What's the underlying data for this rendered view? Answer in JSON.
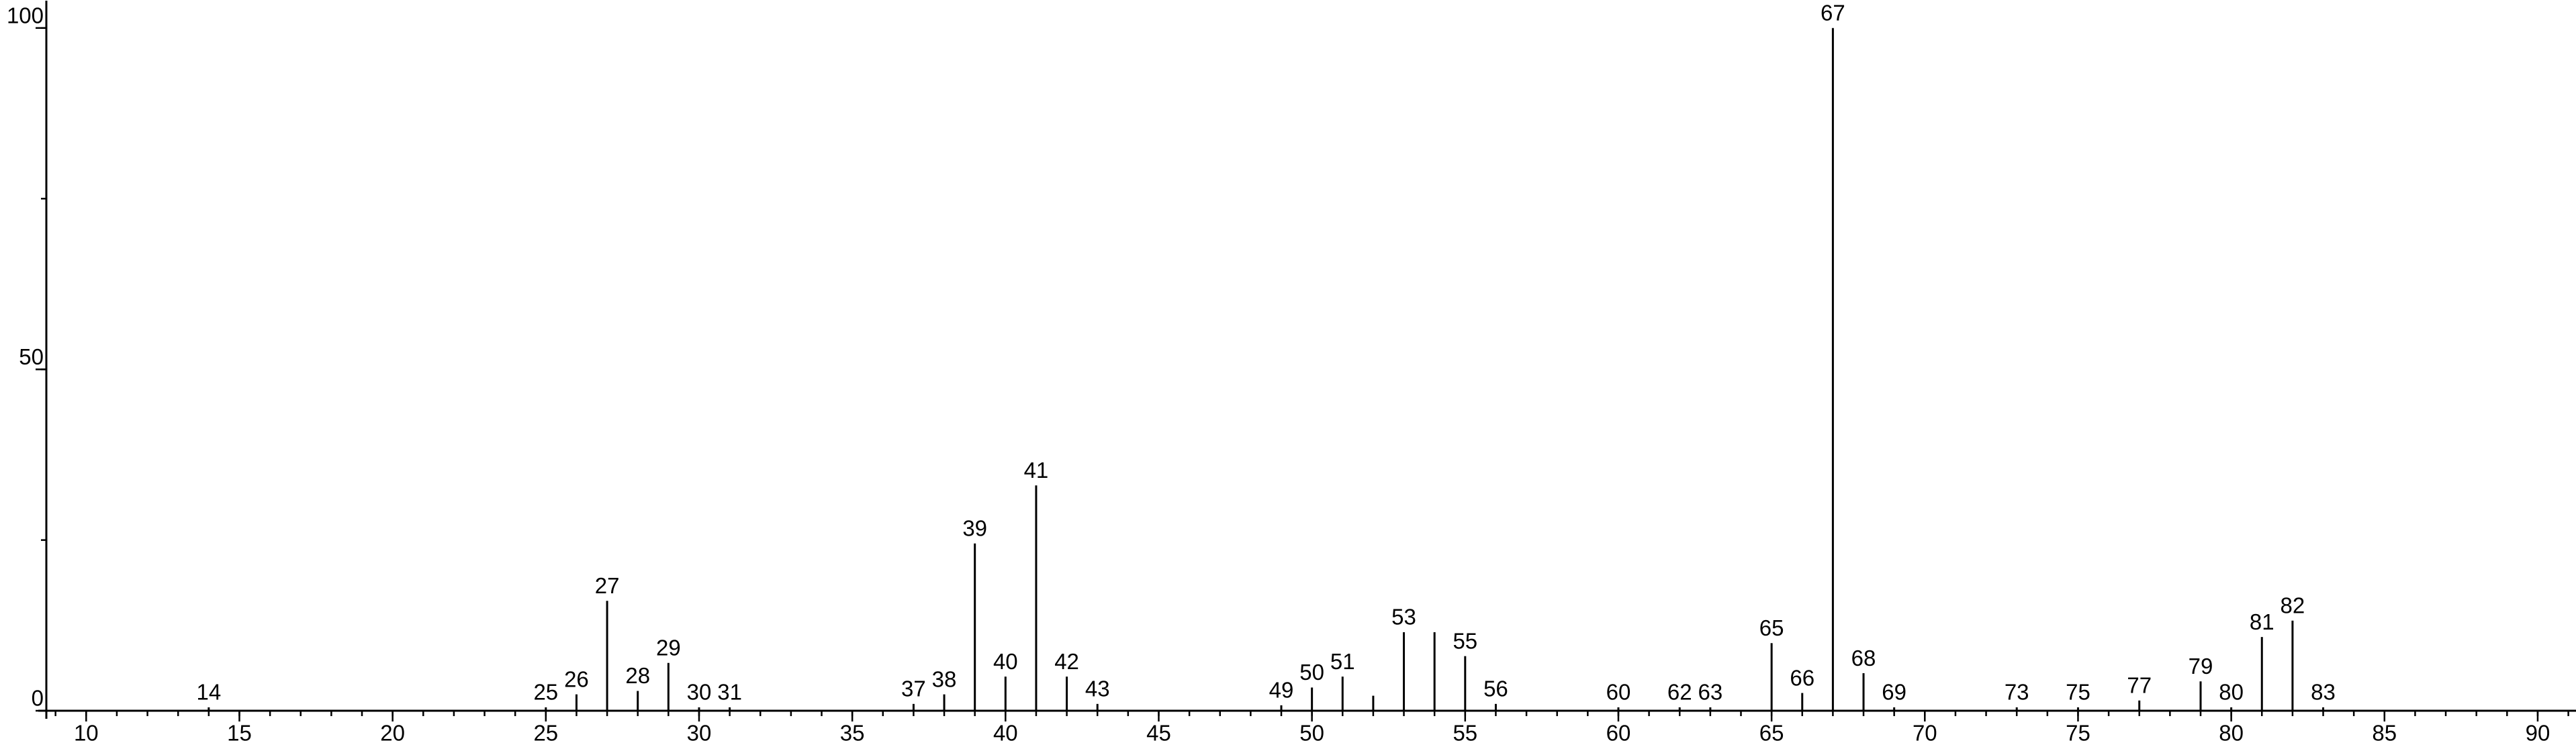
{
  "chart_data": {
    "type": "stem",
    "x": [
      14,
      25,
      26,
      27,
      28,
      29,
      30,
      31,
      37,
      38,
      39,
      40,
      41,
      42,
      43,
      49,
      50,
      51,
      52,
      53,
      54,
      55,
      56,
      60,
      62,
      63,
      65,
      66,
      67,
      68,
      69,
      73,
      75,
      77,
      79,
      80,
      81,
      82,
      83
    ],
    "values": [
      0.5,
      0.5,
      2.4,
      16.1,
      2.9,
      7,
      0.5,
      0.5,
      1,
      2.4,
      24.5,
      5,
      33,
      5,
      1,
      0.8,
      3.4,
      5,
      2.2,
      11.5,
      11.5,
      8,
      1,
      0.5,
      0.5,
      0.5,
      9.9,
      2.6,
      100,
      5.5,
      0.5,
      0.5,
      0.5,
      1.5,
      4.3,
      0.5,
      10.8,
      13.2,
      0.5
    ],
    "labels": [
      14,
      25,
      26,
      27,
      28,
      29,
      30,
      31,
      37,
      38,
      39,
      40,
      41,
      42,
      43,
      49,
      50,
      51,
      null,
      53,
      null,
      55,
      56,
      60,
      62,
      63,
      65,
      66,
      67,
      68,
      69,
      73,
      75,
      77,
      79,
      80,
      81,
      82,
      83
    ],
    "color": "#000000",
    "xlim": [
      8.7,
      91.25
    ],
    "xticks": [
      10,
      15,
      20,
      25,
      30,
      35,
      40,
      45,
      50,
      55,
      60,
      65,
      70,
      75,
      80,
      85,
      90
    ],
    "xminor_step": 1,
    "ylim": [
      0,
      104
    ],
    "yticks": [
      0,
      50,
      100
    ],
    "yminor_step": 25
  }
}
